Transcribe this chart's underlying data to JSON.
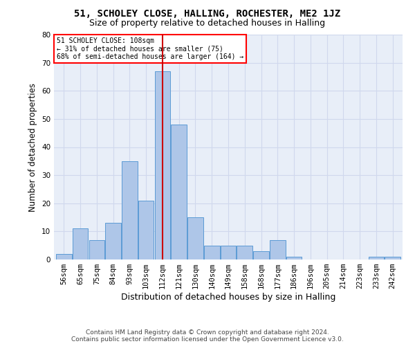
{
  "title": "51, SCHOLEY CLOSE, HALLING, ROCHESTER, ME2 1JZ",
  "subtitle": "Size of property relative to detached houses in Halling",
  "xlabel": "Distribution of detached houses by size in Halling",
  "ylabel": "Number of detached properties",
  "footer_line1": "Contains HM Land Registry data © Crown copyright and database right 2024.",
  "footer_line2": "Contains public sector information licensed under the Open Government Licence v3.0.",
  "annotation_line1": "51 SCHOLEY CLOSE: 108sqm",
  "annotation_line2": "← 31% of detached houses are smaller (75)",
  "annotation_line3": "68% of semi-detached houses are larger (164) →",
  "bar_labels": [
    "56sqm",
    "65sqm",
    "75sqm",
    "84sqm",
    "93sqm",
    "103sqm",
    "112sqm",
    "121sqm",
    "130sqm",
    "140sqm",
    "149sqm",
    "158sqm",
    "168sqm",
    "177sqm",
    "186sqm",
    "196sqm",
    "205sqm",
    "214sqm",
    "223sqm",
    "233sqm",
    "242sqm"
  ],
  "bar_values": [
    2,
    11,
    7,
    13,
    35,
    21,
    67,
    48,
    15,
    5,
    5,
    5,
    3,
    7,
    1,
    0,
    0,
    0,
    0,
    1,
    1
  ],
  "bar_color": "#aec6e8",
  "bar_edge_color": "#5b9bd5",
  "reference_bar_index": 6,
  "vline_color": "#cc0000",
  "ylim": [
    0,
    80
  ],
  "yticks": [
    0,
    10,
    20,
    30,
    40,
    50,
    60,
    70,
    80
  ],
  "grid_color": "#d0d8ed",
  "background_color": "#e8eef8",
  "title_fontsize": 10,
  "subtitle_fontsize": 9,
  "axis_label_fontsize": 8.5,
  "tick_fontsize": 7.5,
  "footer_fontsize": 6.5
}
